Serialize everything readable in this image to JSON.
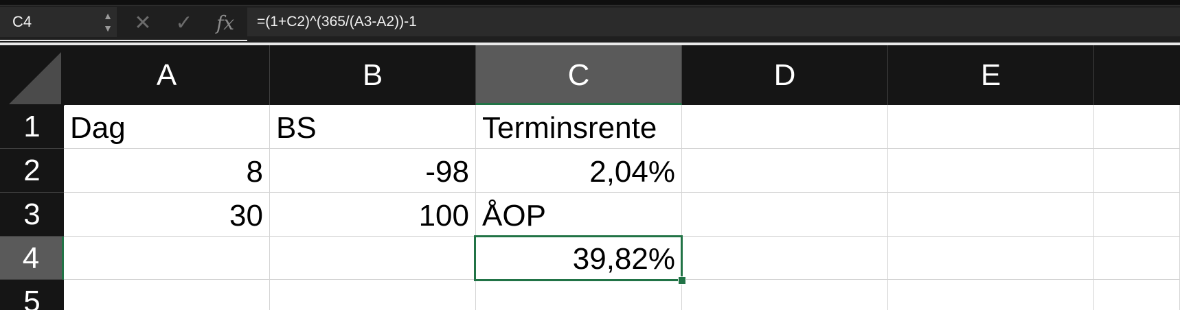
{
  "formula_bar": {
    "name_box": "C4",
    "stepper_up": "▲",
    "stepper_down": "▼",
    "cancel_icon": "✕",
    "enter_icon": "✓",
    "fx_label": "fx",
    "formula": "=(1+C2)^(365/(A3-A2))-1"
  },
  "columns": [
    "A",
    "B",
    "C",
    "D",
    "E"
  ],
  "rows": [
    "1",
    "2",
    "3",
    "4",
    "5"
  ],
  "cells": {
    "A1": "Dag",
    "B1": "BS",
    "C1": "Terminsrente",
    "D1": "",
    "E1": "",
    "A2": "8",
    "B2": "-98",
    "C2": "2,04%",
    "D2": "",
    "E2": "",
    "A3": "30",
    "B3": "100",
    "C3": "ÅOP",
    "D3": "",
    "E3": "",
    "A4": "",
    "B4": "",
    "C4": "39,82%",
    "D4": "",
    "E4": "",
    "A5": "",
    "B5": "",
    "C5": "",
    "D5": "",
    "E5": ""
  },
  "selection": {
    "active_cell": "C4",
    "accent_color": "#217346"
  },
  "icons": [
    "select-all-corner-icon",
    "stepper-icon",
    "cancel-icon",
    "check-icon",
    "fx-icon"
  ]
}
